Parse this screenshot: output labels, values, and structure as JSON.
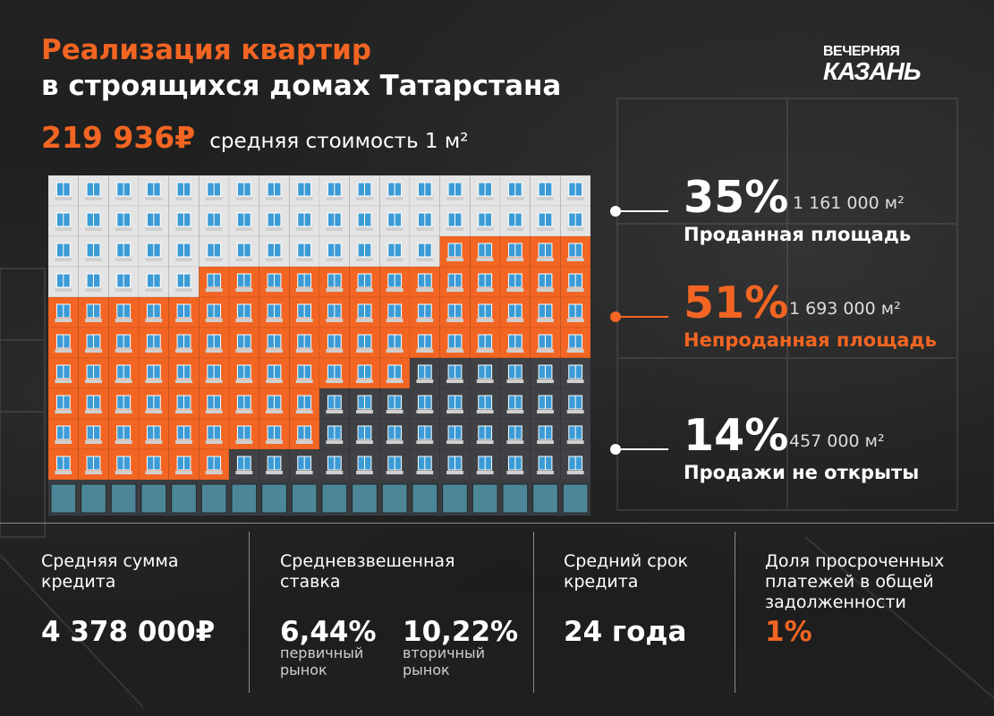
{
  "title": {
    "line1": "Реализация квартир",
    "line2": "в строящихся домах Татарстана"
  },
  "price": {
    "value": "219 936₽",
    "label": "средняя стоимость 1 м²"
  },
  "logo": {
    "top": "ВЕЧЕРНЯЯ",
    "bottom": "КАЗАНЬ"
  },
  "colors": {
    "accent": "#f26522",
    "sold": "#e4e4e4",
    "unsold": "#f26522",
    "not_open": "#3f4145",
    "window": "#3c9bd6"
  },
  "stats": [
    {
      "percent": "35%",
      "area": "1 161 000 м²",
      "label": "Проданная площадь",
      "share": 0.35
    },
    {
      "percent": "51%",
      "area": "1 693 000 м²",
      "label": "Непроданная площадь",
      "share": 0.51
    },
    {
      "percent": "14%",
      "area": "457 000 м²",
      "label": "Продажи не открыты",
      "share": 0.14
    }
  ],
  "bottom": {
    "loan_sum": {
      "caption_1": "Средняя сумма",
      "caption_2": "кредита",
      "value": "4 378 000₽"
    },
    "rate": {
      "caption_1": "Средневзвешенная",
      "caption_2": "ставка",
      "primary_value": "6,44%",
      "primary_label_1": "первичный",
      "primary_label_2": "рынок",
      "secondary_value": "10,22%",
      "secondary_label_1": "вторичный",
      "secondary_label_2": "рынок"
    },
    "term": {
      "caption_1": "Средний срок",
      "caption_2": "кредита",
      "value": "24 года"
    },
    "overdue": {
      "caption_1": "Доля просроченных",
      "caption_2": "платежей в общей",
      "caption_3": "задолженности",
      "value": "1%"
    }
  }
}
